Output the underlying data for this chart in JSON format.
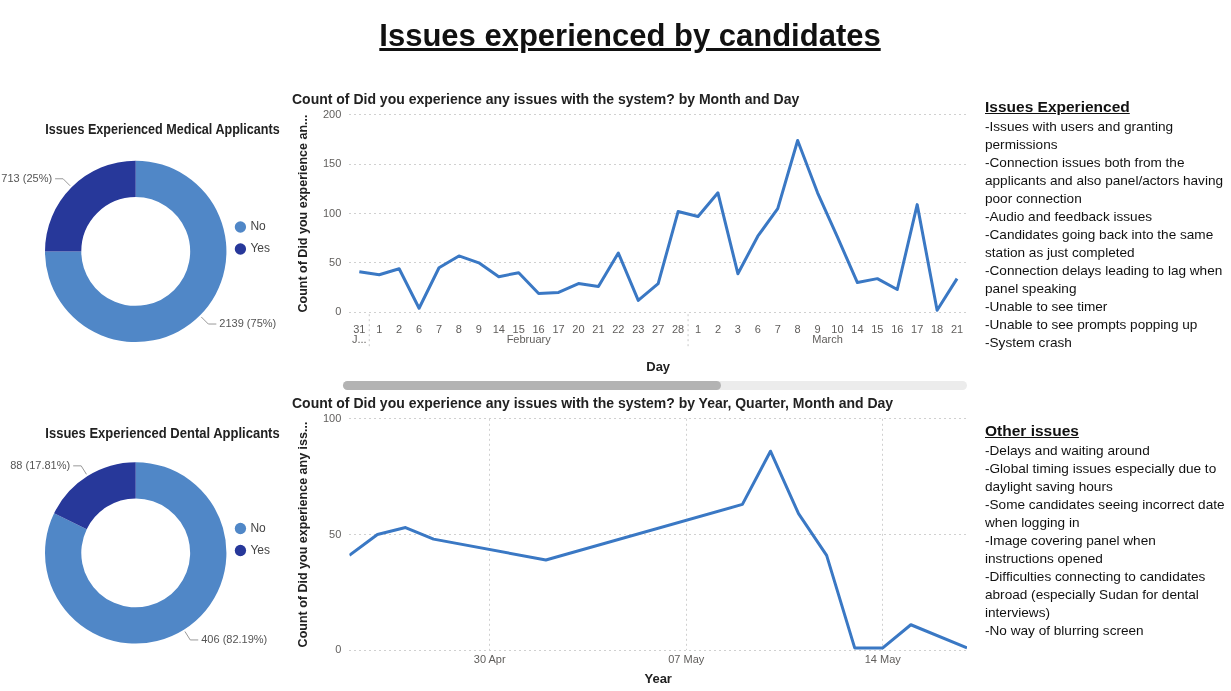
{
  "chart_data": [
    {
      "type": "other",
      "title": "Issues experienced by candidates"
    },
    {
      "type": "donut",
      "title": "Issues Experienced Medical Applicants",
      "categories": [
        "No",
        "Yes"
      ],
      "values": [
        2139,
        713
      ],
      "colors": [
        "#5087c7",
        "#27389a"
      ],
      "value_labels": [
        "2139 (75%)",
        "713 (25%)"
      ],
      "legend": "right"
    },
    {
      "type": "line",
      "title": "Count of Did you experience any issues with the system? by Month and Day",
      "xlabel": "Day",
      "ylabel": "Count of Did you experience an...",
      "categories": [
        "31",
        "1",
        "2",
        "6",
        "7",
        "8",
        "9",
        "14",
        "15",
        "16",
        "17",
        "20",
        "21",
        "22",
        "23",
        "27",
        "28",
        "1",
        "2",
        "3",
        "6",
        "7",
        "8",
        "9",
        "10",
        "14",
        "15",
        "16",
        "17",
        "18",
        "21"
      ],
      "series": [
        {
          "color": "#3a78c4",
          "values": [
            41,
            38,
            44,
            4,
            45,
            57,
            50,
            36,
            40,
            19,
            20,
            29,
            26,
            60,
            12,
            29,
            102,
            97,
            121,
            39,
            77,
            105,
            174,
            121,
            76,
            30,
            34,
            23,
            109,
            2,
            34
          ]
        }
      ],
      "ylim": [
        0,
        200
      ],
      "yticks": [
        0,
        50,
        100,
        150,
        200
      ],
      "grid": "y",
      "marker": "none",
      "line_style": "solid",
      "legend": false,
      "annotations": [
        "J...",
        "February",
        "March"
      ]
    },
    {
      "type": "donut",
      "title": "Issues Experienced Dental Applicants",
      "categories": [
        "No",
        "Yes"
      ],
      "values": [
        406,
        88
      ],
      "colors": [
        "#5087c7",
        "#27389a"
      ],
      "value_labels": [
        "406 (82.19%)",
        "88 (17.81%)"
      ],
      "legend": "right"
    },
    {
      "type": "line",
      "title": "Count of Did you experience any issues with the system? by Year, Quarter, Month and Day",
      "xlabel": "Year",
      "ylabel": "Count of Did you experience any iss...",
      "series": [
        {
          "color": "#3a78c4",
          "x": [
            "--04-25",
            "--04-26",
            "--04-27",
            "--04-28",
            "--05-02",
            "--05-09",
            "--05-10",
            "--05-11",
            "--05-12",
            "--05-13",
            "--05-14",
            "--05-15",
            "--05-17"
          ],
          "values": [
            41,
            50,
            53,
            48,
            39,
            63,
            86,
            59,
            41,
            1,
            1,
            11,
            1
          ]
        }
      ],
      "xlim": [
        "--04-25",
        "--05-17"
      ],
      "xticks": [
        {
          "value": "--04-30",
          "label": "30 Apr"
        },
        {
          "value": "--05-07",
          "label": "07 May"
        },
        {
          "value": "--05-14",
          "label": "14 May"
        }
      ],
      "ylim": [
        0,
        100
      ],
      "yticks": [
        0,
        50,
        100
      ],
      "grid": true,
      "marker": "none",
      "line_style": "solid",
      "legend": false
    },
    {
      "type": "other",
      "title": "Issues Experienced",
      "annotations": [
        "-Issues with users and granting permissions",
        "-Connection issues both from the applicants and also panel/actors having poor connection",
        "-Audio and feedback issues",
        "-Candidates going back into the same station as just completed",
        "-Connection delays leading to lag when panel speaking",
        "-Unable to see timer",
        "-Unable to see prompts popping up",
        "-System crash"
      ]
    },
    {
      "type": "other",
      "title": "Other issues ",
      "annotations": [
        "-Delays and waiting around",
        "-Global timing issues especially due to daylight saving hours",
        "-Some candidates seeing incorrect date when logging in",
        "-Image covering panel when instructions opened",
        "-Difficulties connecting to candidates abroad (especially Sudan for dental interviews)",
        "-No way of blurring screen"
      ]
    }
  ]
}
